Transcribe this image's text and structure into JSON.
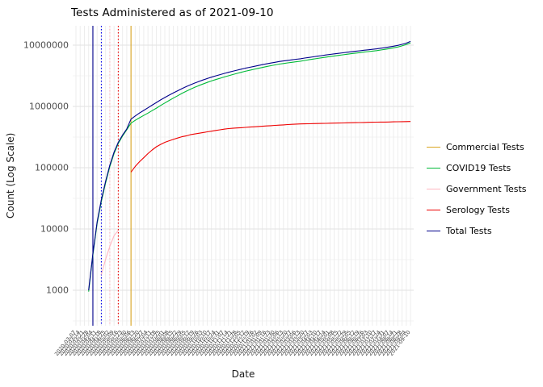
{
  "title": "Tests Administered as of 2021-09-10",
  "axes": {
    "x_label": "Date",
    "y_label": "Count (Log Scale)",
    "y_tick_labels": [
      "1000",
      "10000",
      "100000",
      "1000000",
      "10000000"
    ]
  },
  "legend": {
    "items": [
      {
        "label": "Commercial Tests",
        "color": "#DAA520"
      },
      {
        "label": "COVID19 Tests",
        "color": "#00BA38"
      },
      {
        "label": "Government Tests",
        "color": "#FFB6C1"
      },
      {
        "label": "Serology Tests",
        "color": "#EE0000"
      },
      {
        "label": "Total Tests",
        "color": "#00008B"
      }
    ]
  },
  "chart_data": {
    "type": "line",
    "title": "Tests Administered as of 2021-09-10",
    "xlabel": "Date",
    "ylabel": "Count (Log Scale)",
    "y_scale": "log10",
    "ylim": [
      400,
      20000000
    ],
    "y_ticks": [
      1000,
      10000,
      100000,
      1000000,
      10000000
    ],
    "grid": true,
    "legend_position": "right",
    "x": [
      "2020-03-07",
      "2020-03-14",
      "2020-03-21",
      "2020-03-28",
      "2020-04-04",
      "2020-04-11",
      "2020-04-18",
      "2020-04-25",
      "2020-05-02",
      "2020-05-09",
      "2020-05-16",
      "2020-05-23",
      "2020-05-30",
      "2020-06-06",
      "2020-06-13",
      "2020-06-20",
      "2020-06-27",
      "2020-07-04",
      "2020-07-11",
      "2020-07-18",
      "2020-07-25",
      "2020-08-01",
      "2020-08-08",
      "2020-08-15",
      "2020-08-22",
      "2020-08-29",
      "2020-09-05",
      "2020-09-12",
      "2020-09-19",
      "2020-09-26",
      "2020-10-03",
      "2020-10-10",
      "2020-10-17",
      "2020-10-24",
      "2020-10-31",
      "2020-11-07",
      "2020-11-14",
      "2020-11-21",
      "2020-11-28",
      "2020-12-05",
      "2020-12-12",
      "2020-12-19",
      "2020-12-26",
      "2021-01-02",
      "2021-01-09",
      "2021-01-16",
      "2021-01-23",
      "2021-01-30",
      "2021-02-06",
      "2021-02-13",
      "2021-02-20",
      "2021-02-27",
      "2021-03-06",
      "2021-03-13",
      "2021-03-20",
      "2021-03-27",
      "2021-04-03",
      "2021-04-10",
      "2021-04-17",
      "2021-04-24",
      "2021-05-01",
      "2021-05-08",
      "2021-05-15",
      "2021-05-22",
      "2021-05-29",
      "2021-06-05",
      "2021-06-12",
      "2021-06-19",
      "2021-06-26",
      "2021-07-03",
      "2021-07-10",
      "2021-07-17",
      "2021-07-24",
      "2021-07-31",
      "2021-08-07",
      "2021-08-14",
      "2021-08-21",
      "2021-08-28",
      "2021-09-04",
      "2021-09-10"
    ],
    "series": [
      {
        "name": "Government Tests",
        "color": "#FFB6C1",
        "values": [
          null,
          null,
          null,
          null,
          null,
          null,
          1800,
          3200,
          5200,
          7800,
          9500,
          null,
          null,
          null,
          null,
          null,
          null,
          null,
          null,
          null,
          null,
          null,
          null,
          null,
          null,
          null,
          null,
          null,
          null,
          null,
          null,
          null,
          null,
          null,
          null,
          null,
          null,
          null,
          null,
          null,
          null,
          null,
          null,
          null,
          null,
          null,
          null,
          null,
          null,
          null,
          null,
          null,
          null,
          null,
          null,
          null,
          null,
          null,
          null,
          null,
          null,
          null,
          null,
          null,
          null,
          null,
          null,
          null,
          null,
          null,
          null,
          null,
          null,
          null,
          null,
          null,
          null,
          null,
          null,
          null
        ]
      },
      {
        "name": "Serology Tests",
        "color": "#EE0000",
        "values": [
          null,
          null,
          null,
          null,
          null,
          null,
          null,
          null,
          null,
          null,
          null,
          null,
          null,
          85000,
          105000,
          125000,
          145000,
          170000,
          195000,
          220000,
          240000,
          260000,
          275000,
          290000,
          305000,
          320000,
          330000,
          345000,
          355000,
          365000,
          375000,
          385000,
          395000,
          405000,
          415000,
          425000,
          435000,
          440000,
          445000,
          450000,
          455000,
          460000,
          465000,
          470000,
          475000,
          480000,
          485000,
          490000,
          495000,
          500000,
          505000,
          510000,
          515000,
          518000,
          520000,
          522000,
          524000,
          526000,
          528000,
          530000,
          532000,
          534000,
          536000,
          538000,
          540000,
          542000,
          544000,
          546000,
          548000,
          550000,
          552000,
          554000,
          555000,
          556000,
          558000,
          560000,
          562000,
          564000,
          566000,
          568000
        ]
      },
      {
        "name": "COVID19 Tests",
        "color": "#00BA38",
        "values": [
          null,
          null,
          null,
          950,
          3800,
          12300,
          28000,
          56500,
          104000,
          171000,
          249000,
          328000,
          417000,
          533000,
          593000,
          653000,
          713000,
          778000,
          853000,
          938000,
          1038000,
          1138000,
          1253000,
          1368000,
          1493000,
          1628000,
          1768000,
          1903000,
          2043000,
          2183000,
          2323000,
          2463000,
          2603000,
          2743000,
          2883000,
          3023000,
          3163000,
          3308000,
          3453000,
          3598000,
          3743000,
          3888000,
          4033000,
          4178000,
          4323000,
          4468000,
          4613000,
          4758000,
          4903000,
          5018000,
          5133000,
          5248000,
          5363000,
          5480000,
          5628000,
          5776000,
          5922000,
          6072000,
          6220000,
          6368000,
          6516000,
          6664000,
          6812000,
          6960000,
          7108000,
          7256000,
          7404000,
          7552000,
          7700000,
          7848000,
          7996000,
          8144000,
          8344000,
          8543000,
          8791000,
          9038000,
          9336000,
          9734000,
          10232000,
          10932000
        ]
      },
      {
        "name": "Total Tests",
        "color": "#00008B",
        "values": [
          null,
          null,
          null,
          1000,
          4000,
          13000,
          30000,
          60000,
          110000,
          180000,
          260000,
          340000,
          430000,
          620000,
          700000,
          780000,
          860000,
          950000,
          1050000,
          1160000,
          1280000,
          1400000,
          1530000,
          1660000,
          1800000,
          1950000,
          2100000,
          2250000,
          2400000,
          2550000,
          2700000,
          2850000,
          3000000,
          3150000,
          3300000,
          3450000,
          3600000,
          3750000,
          3900000,
          4050000,
          4200000,
          4350000,
          4500000,
          4650000,
          4800000,
          4950000,
          5100000,
          5250000,
          5400000,
          5520000,
          5640000,
          5760000,
          5880000,
          6000000,
          6150000,
          6300000,
          6450000,
          6600000,
          6750000,
          6900000,
          7050000,
          7200000,
          7350000,
          7500000,
          7650000,
          7800000,
          7950000,
          8100000,
          8250000,
          8400000,
          8550000,
          8700000,
          8900000,
          9100000,
          9350000,
          9600000,
          9900000,
          10300000,
          10800000,
          11500000
        ]
      }
    ],
    "event_vlines": [
      {
        "date": "2020-04-04",
        "color": "#00008B",
        "style": "solid"
      },
      {
        "date": "2020-04-18",
        "color": "#0000EE",
        "style": "dotted"
      },
      {
        "date": "2020-05-02",
        "color": "#FFB6C1",
        "style": "dotted"
      },
      {
        "date": "2020-05-16",
        "color": "#EE0000",
        "style": "dotted"
      },
      {
        "date": "2020-06-06",
        "color": "#DAA520",
        "style": "solid"
      }
    ]
  }
}
